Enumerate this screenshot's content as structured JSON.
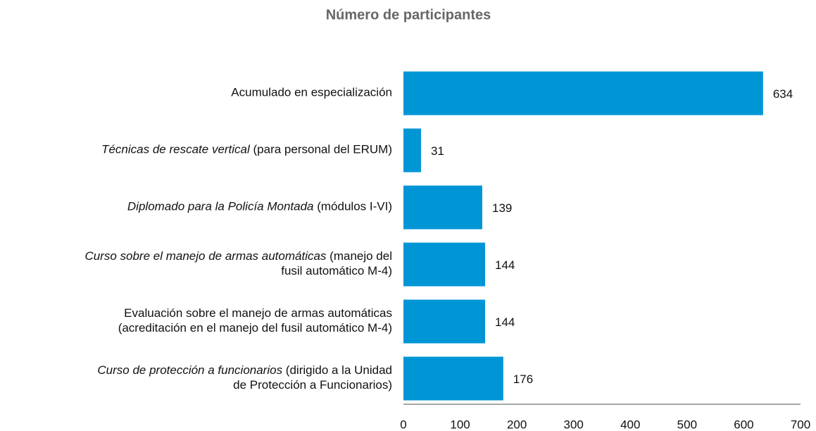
{
  "chart_data": {
    "type": "bar",
    "orientation": "horizontal",
    "title": "Número de participantes",
    "categories": [
      [
        [
          {
            "text": "Acumulado en especialización",
            "italic": false
          }
        ]
      ],
      [
        [
          {
            "text": "Técnicas de rescate vertical",
            "italic": true
          },
          {
            "text": " (para personal del ERUM)",
            "italic": false
          }
        ]
      ],
      [
        [
          {
            "text": "Diplomado para la Policía Montada",
            "italic": true
          },
          {
            "text": " (módulos I-VI)",
            "italic": false
          }
        ]
      ],
      [
        [
          {
            "text": "Curso sobre el manejo de armas automáticas",
            "italic": true
          },
          {
            "text": " (manejo del",
            "italic": false
          }
        ],
        [
          {
            "text": "fusil automático M-4)",
            "italic": false
          }
        ]
      ],
      [
        [
          {
            "text": "Evaluación sobre el manejo de armas automáticas",
            "italic": false
          }
        ],
        [
          {
            "text": "(acreditación en el manejo del fusil automático M-4)",
            "italic": false
          }
        ]
      ],
      [
        [
          {
            "text": "Curso de protección a funcionarios",
            "italic": true
          },
          {
            "text": " (dirigido a la Unidad",
            "italic": false
          }
        ],
        [
          {
            "text": "de Protección a Funcionarios)",
            "italic": false
          }
        ]
      ]
    ],
    "values": [
      634,
      31,
      139,
      144,
      144,
      176
    ],
    "color": "#0096d6",
    "xlim": [
      0,
      700
    ],
    "xticks": [
      0,
      100,
      200,
      300,
      400,
      500,
      600,
      700
    ],
    "grid": false
  }
}
